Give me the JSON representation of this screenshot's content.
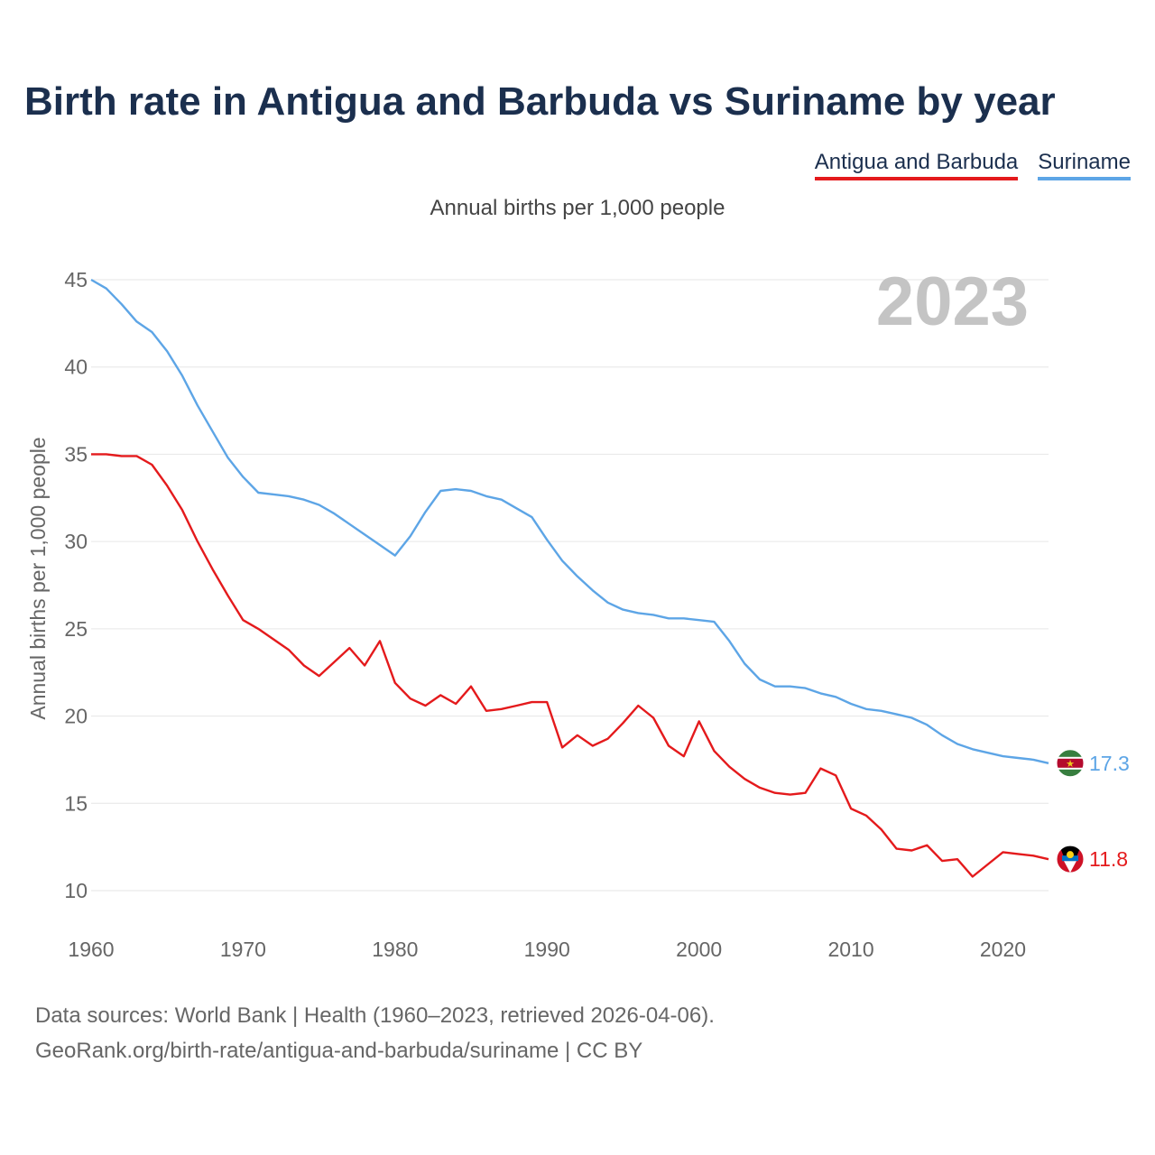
{
  "title": "Birth rate in Antigua and Barbuda vs Suriname by year",
  "subtitle": "Annual births per 1,000 people",
  "legend": [
    "Antigua and Barbuda",
    "Suriname"
  ],
  "year_label": "2023",
  "footer": {
    "line1": "Data sources: World Bank | Health (1960–2023, retrieved 2026-04-06).",
    "line2": "GeoRank.org/birth-rate/antigua-and-barbuda/suriname | CC BY"
  },
  "colors": {
    "antigua": "#e41a1c",
    "suriname": "#5da5e6",
    "title": "#1b2f4e",
    "year_watermark": "#c4c4c4",
    "grid": "#e6e6e6"
  },
  "chart_data": {
    "type": "line",
    "title": "Birth rate in Antigua and Barbuda vs Suriname by year",
    "xlabel": "",
    "ylabel": "Annual births per 1,000 people",
    "xlim": [
      1960,
      2023
    ],
    "ylim": [
      10,
      45
    ],
    "xticks": [
      1960,
      1970,
      1980,
      1990,
      2000,
      2010,
      2020
    ],
    "yticks": [
      10,
      15,
      20,
      25,
      30,
      35,
      40,
      45
    ],
    "grid": true,
    "x": [
      1960,
      1961,
      1962,
      1963,
      1964,
      1965,
      1966,
      1967,
      1968,
      1969,
      1970,
      1971,
      1972,
      1973,
      1974,
      1975,
      1976,
      1977,
      1978,
      1979,
      1980,
      1981,
      1982,
      1983,
      1984,
      1985,
      1986,
      1987,
      1988,
      1989,
      1990,
      1991,
      1992,
      1993,
      1994,
      1995,
      1996,
      1997,
      1998,
      1999,
      2000,
      2001,
      2002,
      2003,
      2004,
      2005,
      2006,
      2007,
      2008,
      2009,
      2010,
      2011,
      2012,
      2013,
      2014,
      2015,
      2016,
      2017,
      2018,
      2019,
      2020,
      2021,
      2022,
      2023
    ],
    "series": [
      {
        "name": "Antigua and Barbuda",
        "color": "#e41a1c",
        "end_label": "11.8",
        "values": [
          35.0,
          35.0,
          34.9,
          34.9,
          34.4,
          33.2,
          31.8,
          30.0,
          28.4,
          26.9,
          25.5,
          25.0,
          24.4,
          23.8,
          22.9,
          22.3,
          23.1,
          23.9,
          22.9,
          24.3,
          21.9,
          21.0,
          20.6,
          21.2,
          20.7,
          21.7,
          20.3,
          20.4,
          20.6,
          20.8,
          20.8,
          18.2,
          18.9,
          18.3,
          18.7,
          19.6,
          20.6,
          19.9,
          18.3,
          17.7,
          19.7,
          18.0,
          17.1,
          16.4,
          15.9,
          15.6,
          15.5,
          15.6,
          17.0,
          16.6,
          14.7,
          14.3,
          13.5,
          12.4,
          12.3,
          12.6,
          11.7,
          11.8,
          10.8,
          11.5,
          12.2,
          12.1,
          12.0,
          11.8
        ]
      },
      {
        "name": "Suriname",
        "color": "#5da5e6",
        "end_label": "17.3",
        "values": [
          45.0,
          44.5,
          43.6,
          42.6,
          42.0,
          40.9,
          39.5,
          37.8,
          36.3,
          34.8,
          33.7,
          32.8,
          32.7,
          32.6,
          32.4,
          32.1,
          31.6,
          31.0,
          30.4,
          29.8,
          29.2,
          30.3,
          31.7,
          32.9,
          33.0,
          32.9,
          32.6,
          32.4,
          31.9,
          31.4,
          30.1,
          28.9,
          28.0,
          27.2,
          26.5,
          26.1,
          25.9,
          25.8,
          25.6,
          25.6,
          25.5,
          25.4,
          24.3,
          23.0,
          22.1,
          21.7,
          21.7,
          21.6,
          21.3,
          21.1,
          20.7,
          20.4,
          20.3,
          20.1,
          19.9,
          19.5,
          18.9,
          18.4,
          18.1,
          17.9,
          17.7,
          17.6,
          17.5,
          17.3
        ]
      }
    ]
  }
}
